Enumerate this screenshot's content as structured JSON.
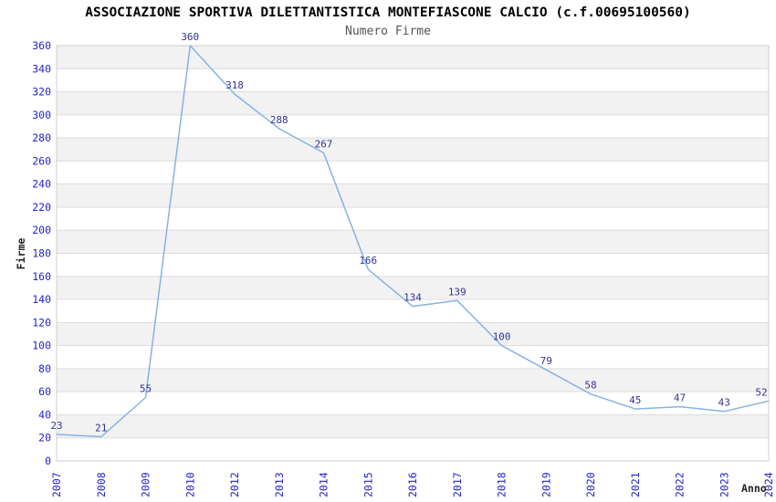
{
  "header": {
    "title": "ASSOCIAZIONE SPORTIVA DILETTANTISTICA MONTEFIASCONE CALCIO (c.f.00695100560)",
    "subtitle": "Numero Firme"
  },
  "chart_data": {
    "type": "line",
    "title": "ASSOCIAZIONE SPORTIVA DILETTANTISTICA MONTEFIASCONE CALCIO (c.f.00695100560)",
    "subtitle": "Numero Firme",
    "xlabel": "Anno",
    "ylabel": "Firme",
    "categories": [
      "2007",
      "2008",
      "2009",
      "2010",
      "2012",
      "2013",
      "2014",
      "2015",
      "2016",
      "2017",
      "2018",
      "2019",
      "2020",
      "2021",
      "2022",
      "2023",
      "2024"
    ],
    "values": [
      23,
      21,
      55,
      360,
      318,
      288,
      267,
      166,
      134,
      139,
      100,
      79,
      58,
      45,
      47,
      43,
      52
    ],
    "ylim": [
      0,
      360
    ],
    "ytick_step": 20,
    "grid": true,
    "alternating_bands": true,
    "legend": "none",
    "colors": {
      "line": "#85b2e6",
      "tick_label": "#2323cc",
      "data_label": "#333399",
      "band": "#f2f2f2",
      "grid": "#dcdcdc",
      "border": "#cfcfcf",
      "title": "#000000",
      "subtitle": "#555555",
      "axis_title": "#222222",
      "background": "#ffffff"
    }
  }
}
